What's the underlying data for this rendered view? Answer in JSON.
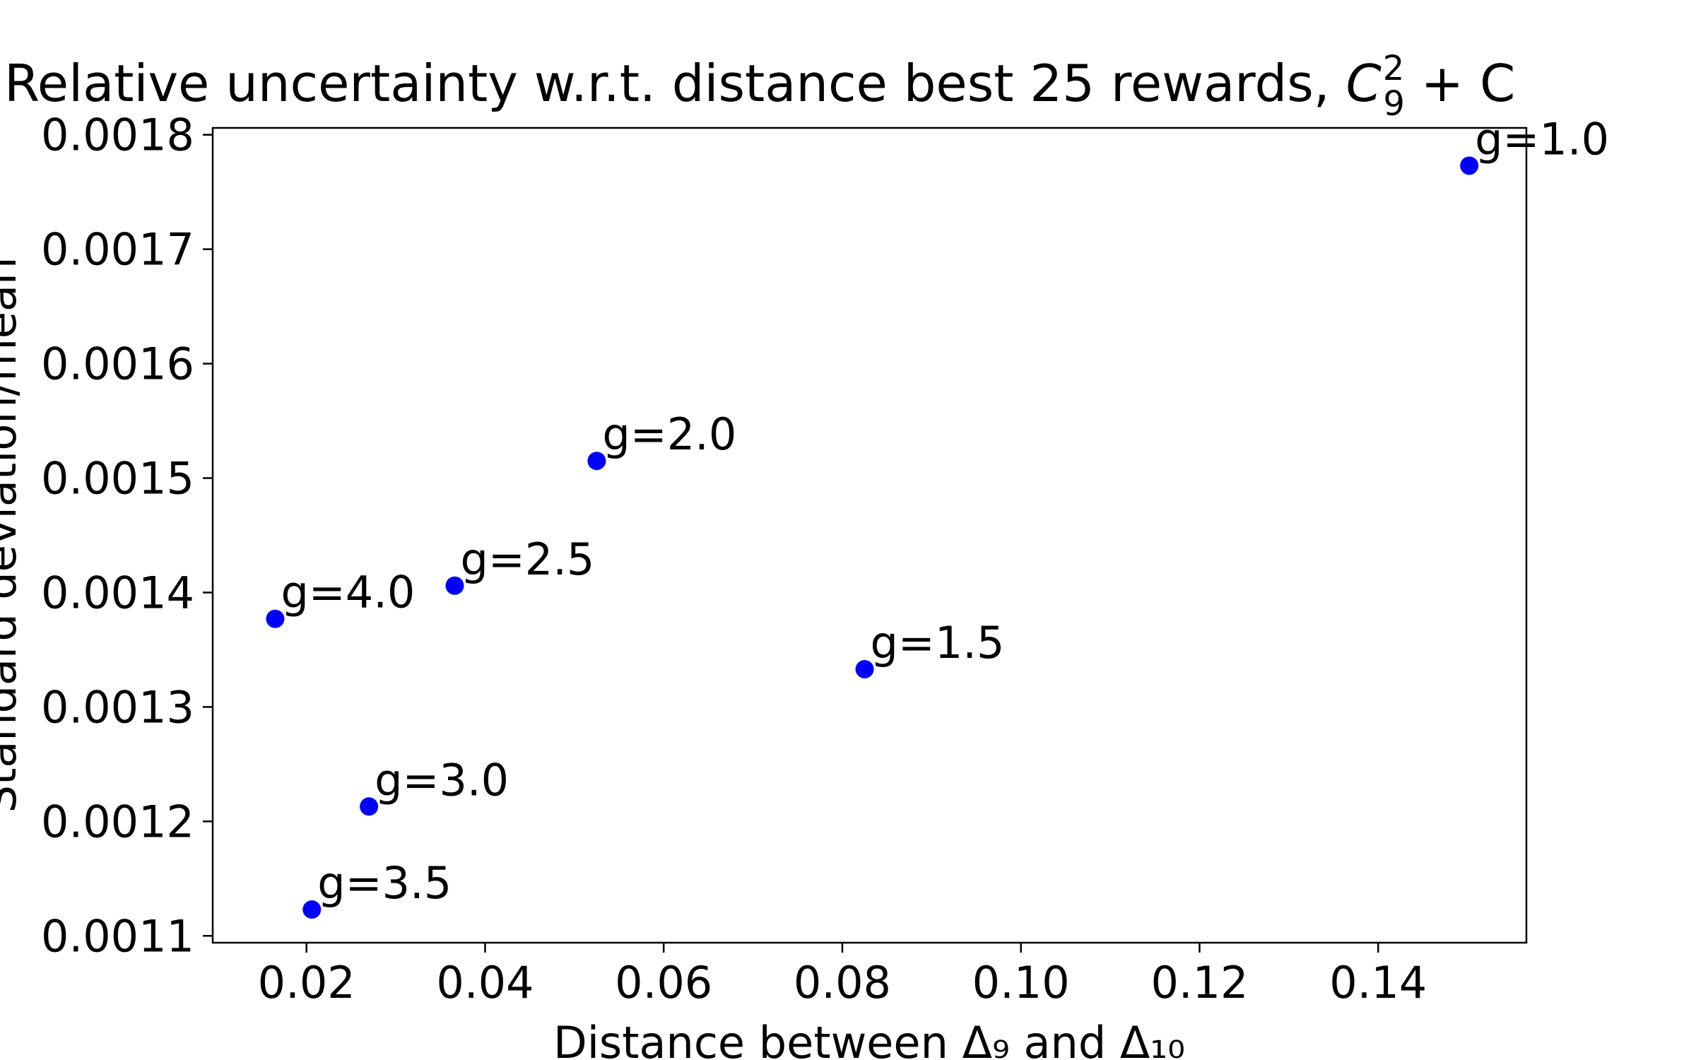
{
  "chart_data": {
    "type": "scatter",
    "title": "Relative uncertainty w.r.t. distance best 25 rewards, ",
    "title_math_base": "C",
    "title_math_sub": "9",
    "title_math_sup": "2",
    "title_math_rest": " + C",
    "xlabel": "Distance between Δ₉ and Δ₁₀",
    "ylabel": "Standard deviation/mean",
    "xlim": [
      0.0095,
      0.1566
    ],
    "ylim": [
      0.001094,
      0.001806
    ],
    "xticks": [
      0.02,
      0.04,
      0.06,
      0.08,
      0.1,
      0.12,
      0.14
    ],
    "xtick_labels": [
      "0.02",
      "0.04",
      "0.06",
      "0.08",
      "0.10",
      "0.12",
      "0.14"
    ],
    "yticks": [
      0.0011,
      0.0012,
      0.0013,
      0.0014,
      0.0015,
      0.0016,
      0.0017,
      0.0018
    ],
    "ytick_labels": [
      "0.0011",
      "0.0012",
      "0.0013",
      "0.0014",
      "0.0015",
      "0.0016",
      "0.0017",
      "0.0018"
    ],
    "grid": false,
    "marker_color": "#0000ff",
    "points": [
      {
        "label": "g=1.0",
        "x": 0.1502,
        "y": 0.001773
      },
      {
        "label": "g=1.5",
        "x": 0.0825,
        "y": 0.001333
      },
      {
        "label": "g=2.0",
        "x": 0.0525,
        "y": 0.001515
      },
      {
        "label": "g=2.5",
        "x": 0.0366,
        "y": 0.001406
      },
      {
        "label": "g=3.0",
        "x": 0.027,
        "y": 0.001213
      },
      {
        "label": "g=3.5",
        "x": 0.0206,
        "y": 0.001123
      },
      {
        "label": "g=4.0",
        "x": 0.0165,
        "y": 0.001377
      }
    ]
  }
}
